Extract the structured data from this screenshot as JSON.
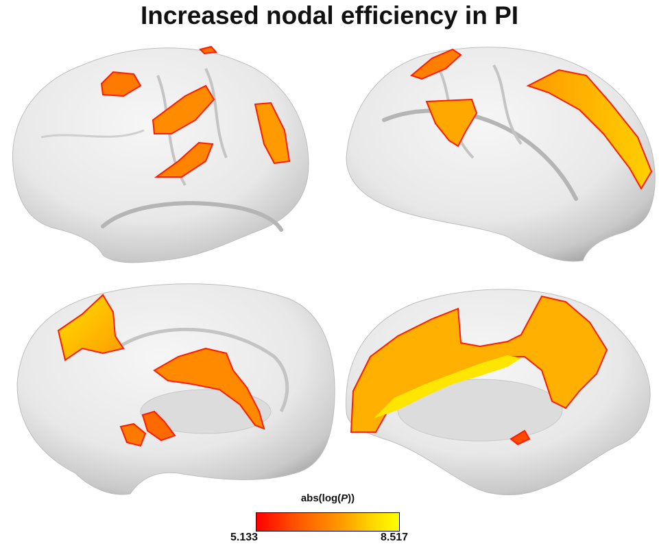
{
  "title": "Increased nodal efficiency in PI",
  "colorbar": {
    "label_prefix": "abs(log(",
    "label_var": "P",
    "label_suffix": "))",
    "min": "5.133",
    "max": "8.517",
    "colors": [
      "#ff0000",
      "#ff5a00",
      "#ff9c00",
      "#ffd800",
      "#ffff00"
    ]
  },
  "views": [
    {
      "name": "left-lateral"
    },
    {
      "name": "right-lateral"
    },
    {
      "name": "left-medial"
    },
    {
      "name": "right-medial"
    }
  ]
}
